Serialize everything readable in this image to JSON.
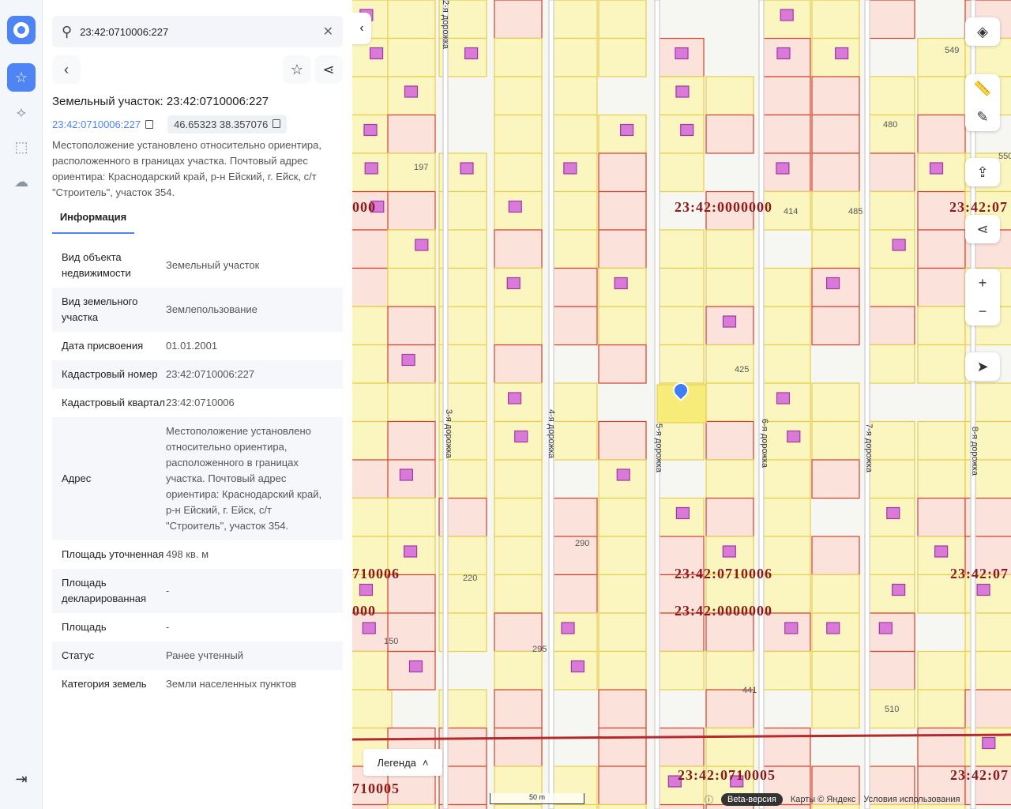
{
  "search": {
    "value": "23:42:0710006:227"
  },
  "title": "Земельный участок: 23:42:0710006:227",
  "cad_link": "23:42:0710006:227",
  "coords": "46.65323 38.357076",
  "description": "Местоположение установлено относительно ориентира, расположенного в границах участка. Почтовый адрес ориентира: Краснодарский край, р-н Ейский, г. Ейск, с/т \"Строитель\", участок 354.",
  "tab": "Информация",
  "info": [
    {
      "k": "Вид объекта недвижимости",
      "v": "Земельный участок"
    },
    {
      "k": "Вид земельного участка",
      "v": "Землепользование"
    },
    {
      "k": "Дата присвоения",
      "v": "01.01.2001"
    },
    {
      "k": "Кадастровый номер",
      "v": "23:42:0710006:227"
    },
    {
      "k": "Кадастровый квартал",
      "v": "23:42:0710006"
    },
    {
      "k": "Адрес",
      "v": "Местоположение установлено относительно ориентира, расположенного в границах участка. Почтовый адрес ориентира: Краснодарский край, р-н Ейский, г. Ейск, с/т \"Строитель\", участок 354."
    },
    {
      "k": "Площадь уточненная",
      "v": "498 кв. м"
    },
    {
      "k": "Площадь декларированная",
      "v": "-"
    },
    {
      "k": "Площадь",
      "v": "-"
    },
    {
      "k": "Статус",
      "v": "Ранее учтенный"
    },
    {
      "k": "Категория земель",
      "v": "Земли населенных пунктов"
    }
  ],
  "map": {
    "labels": [
      "23:42:0000000",
      "23:42:0710006",
      "23:42:0000000",
      "23:42:0710005",
      "23:42:07",
      "23:42:07",
      "23:42:07",
      "000",
      "710006",
      "000",
      "710005"
    ],
    "roads": [
      "2-я дорожка",
      "3-я дорожка",
      "4-я дорожка",
      "5-я дорожка",
      "6-я дорожка",
      "7-я дорожка",
      "8-я дорожка"
    ],
    "numbers": [
      "414",
      "485",
      "480",
      "197",
      "425",
      "220",
      "290",
      "150",
      "295",
      "441",
      "510",
      "549",
      "550"
    ],
    "legend": "Легенда",
    "scale": "50 m",
    "beta": "Beta-версия",
    "copyright": "Карты © Яндекс",
    "terms": "Условия использования"
  },
  "colors": {
    "accent": "#4f84f5",
    "parcel_fill": "#fbf6c0",
    "parcel_stroke": "#e6cf4c",
    "registered_stroke": "#d9402a",
    "building": "#d97ad9"
  }
}
